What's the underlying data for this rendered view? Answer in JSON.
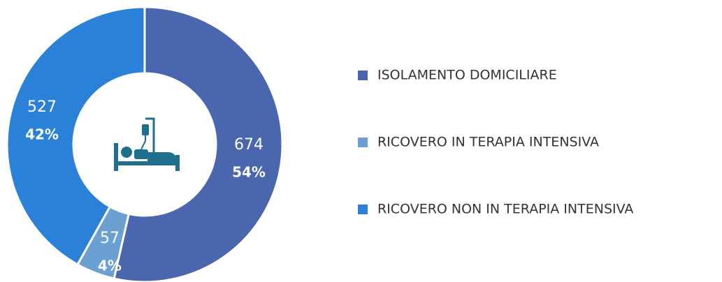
{
  "chart_data": {
    "type": "donut",
    "categories": [
      "ISOLAMENTO DOMICILIARE",
      "RICOVERO IN TERAPIA INTENSIVA",
      "RICOVERO NON IN TERAPIA INTENSIVA"
    ],
    "values": [
      674,
      57,
      527
    ],
    "percent_labels": [
      "54%",
      "4%",
      "42%"
    ],
    "colors": [
      "#4a66ae",
      "#6aa0d2",
      "#2b80d8"
    ],
    "legend": "right"
  }
}
